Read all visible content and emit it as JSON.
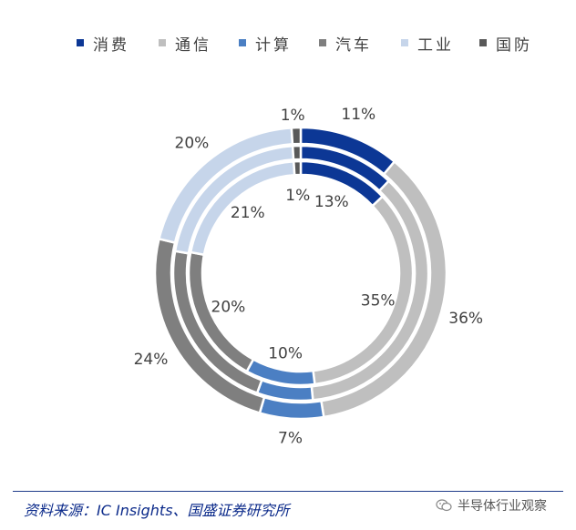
{
  "chart_data": {
    "type": "pie",
    "chart_form": "nested-donut",
    "categories": [
      "消费",
      "通信",
      "计算",
      "汽车",
      "工业",
      "国防"
    ],
    "colors": [
      "#0c3795",
      "#bfbfbf",
      "#4b7fc3",
      "#7f7f7f",
      "#c6d5ea",
      "#595959"
    ],
    "series": [
      {
        "values": [
          11,
          36,
          7,
          24,
          20,
          1
        ]
      },
      {
        "values": [
          12,
          36,
          7,
          22,
          21,
          1
        ]
      },
      {
        "values": [
          13,
          35,
          10,
          20,
          21,
          1
        ]
      }
    ],
    "labels": {
      "outer": [
        "11%",
        "36%",
        "7%",
        "24%",
        "20%",
        "1%"
      ],
      "inner": [
        "13%",
        "35%",
        "10%",
        "20%",
        "21%",
        "1%"
      ]
    },
    "legend_position": "top"
  },
  "footer": {
    "source": "资料来源：IC Insights、国盛证券研究所",
    "watermark": "半导体行业观察"
  }
}
